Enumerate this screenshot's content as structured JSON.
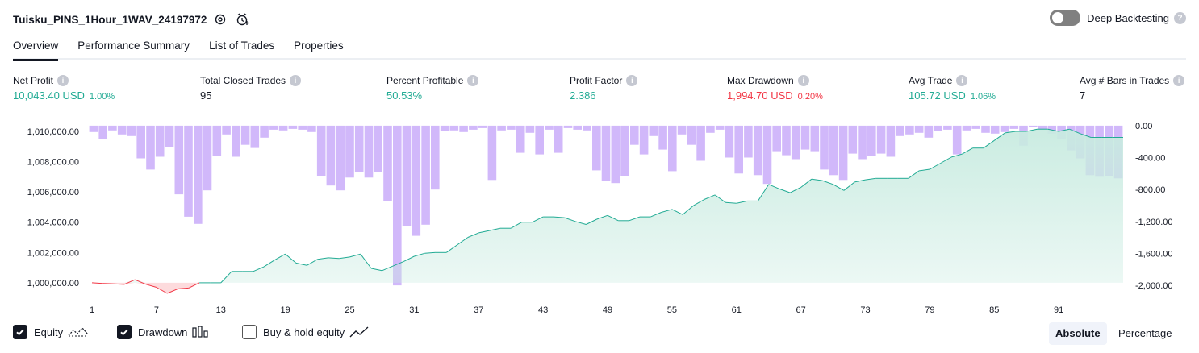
{
  "header": {
    "title": "Tuisku_PINS_1Hour_1WAV_24197972",
    "deep_label": "Deep Backtesting",
    "deep_enabled": false
  },
  "tabs": [
    "Overview",
    "Performance Summary",
    "List of Trades",
    "Properties"
  ],
  "active_tab": "Overview",
  "metrics": {
    "net_profit": {
      "label": "Net Profit",
      "value": "10,043.40 USD",
      "pct": "1.00%"
    },
    "total_closed_trades": {
      "label": "Total Closed Trades",
      "value": "95"
    },
    "percent_profitable": {
      "label": "Percent Profitable",
      "value": "50.53%"
    },
    "profit_factor": {
      "label": "Profit Factor",
      "value": "2.386"
    },
    "max_drawdown": {
      "label": "Max Drawdown",
      "value": "1,994.70 USD",
      "pct": "0.20%"
    },
    "avg_trade": {
      "label": "Avg Trade",
      "value": "105.72 USD",
      "pct": "1.06%"
    },
    "avg_bars": {
      "label": "Avg # Bars in Trades",
      "value": "7"
    }
  },
  "chart_data": {
    "type": "area",
    "left_axis_ticks": [
      "1,010,000.00",
      "1,008,000.00",
      "1,006,000.00",
      "1,004,000.00",
      "1,002,000.00",
      "1,000,000.00"
    ],
    "right_axis_ticks": [
      "0.00",
      "-400.00",
      "-800.00",
      "-1,200.00",
      "-1,600.00",
      "-2,000.00"
    ],
    "x_ticks": [
      "1",
      "7",
      "13",
      "19",
      "25",
      "31",
      "37",
      "43",
      "49",
      "55",
      "61",
      "67",
      "73",
      "79",
      "85",
      "91"
    ],
    "left_range": [
      999300,
      1010800
    ],
    "right_range": [
      -2100,
      80
    ],
    "equity": [
      1000000,
      999950,
      999930,
      999890,
      1000200,
      999900,
      999700,
      999300,
      999600,
      999650,
      1000000,
      1000000,
      1000000,
      1000750,
      1000750,
      1000750,
      1001050,
      1001500,
      1001900,
      1001300,
      1001150,
      1001550,
      1001650,
      1001600,
      1001700,
      1001900,
      1000950,
      1000800,
      1001100,
      1001400,
      1001750,
      1001950,
      1002000,
      1002000,
      1002500,
      1003000,
      1003300,
      1003450,
      1003600,
      1003600,
      1004000,
      1004000,
      1004350,
      1004350,
      1004300,
      1004050,
      1003850,
      1004200,
      1004450,
      1004100,
      1004100,
      1004350,
      1004350,
      1004650,
      1004850,
      1004500,
      1005100,
      1005500,
      1005800,
      1005300,
      1005250,
      1005400,
      1005400,
      1006500,
      1006200,
      1005950,
      1006300,
      1006850,
      1006750,
      1006500,
      1006100,
      1006650,
      1006800,
      1006900,
      1006900,
      1006900,
      1006900,
      1007400,
      1007500,
      1007900,
      1008300,
      1008500,
      1008900,
      1008900,
      1009400,
      1009900,
      1010000,
      1010000,
      1010150,
      1010150,
      1010000,
      1010150,
      1009850,
      1009600,
      1009600,
      1009600,
      1009600
    ],
    "drawdown": [
      -80,
      -170,
      -60,
      -110,
      -130,
      -410,
      -550,
      -390,
      -270,
      -860,
      -1140,
      -1230,
      -810,
      -380,
      -110,
      -390,
      -240,
      -280,
      -150,
      -50,
      -60,
      -40,
      -50,
      -80,
      -630,
      -750,
      -810,
      -650,
      -580,
      -650,
      -580,
      -950,
      -2000,
      -1260,
      -1380,
      -1240,
      -800,
      -70,
      -60,
      -80,
      -50,
      -30,
      -680,
      -60,
      -50,
      -340,
      -90,
      -360,
      -50,
      -340,
      -30,
      -50,
      -60,
      -560,
      -690,
      -720,
      -630,
      -240,
      -360,
      -130,
      -300,
      -570,
      -110,
      -240,
      -440,
      -90,
      -50,
      -400,
      -600,
      -400,
      -620,
      -730,
      -320,
      -370,
      -420,
      -300,
      -320,
      -550,
      -620,
      -680,
      -350,
      -420,
      -380,
      -350,
      -390,
      -130,
      -110,
      -90,
      -150,
      -70,
      -50,
      -360,
      -60,
      -40,
      -90,
      -100,
      -80,
      -40,
      -250,
      -20,
      -50,
      -100,
      -170,
      -310,
      -410,
      -620,
      -640,
      -630,
      -660
    ]
  },
  "legend": {
    "equity": {
      "label": "Equity",
      "checked": true
    },
    "drawdown": {
      "label": "Drawdown",
      "checked": true
    },
    "buy_hold": {
      "label": "Buy & hold equity",
      "checked": false
    }
  },
  "mode": {
    "absolute": "Absolute",
    "percentage": "Percentage",
    "selected": "Absolute"
  },
  "colors": {
    "positive": "#22ab94",
    "negative": "#f23645",
    "drawdown_bar": "#d1b8fa",
    "drawdown_bar_overlap": "#b1b9f0",
    "equity_fill": "#c8ebe0"
  }
}
